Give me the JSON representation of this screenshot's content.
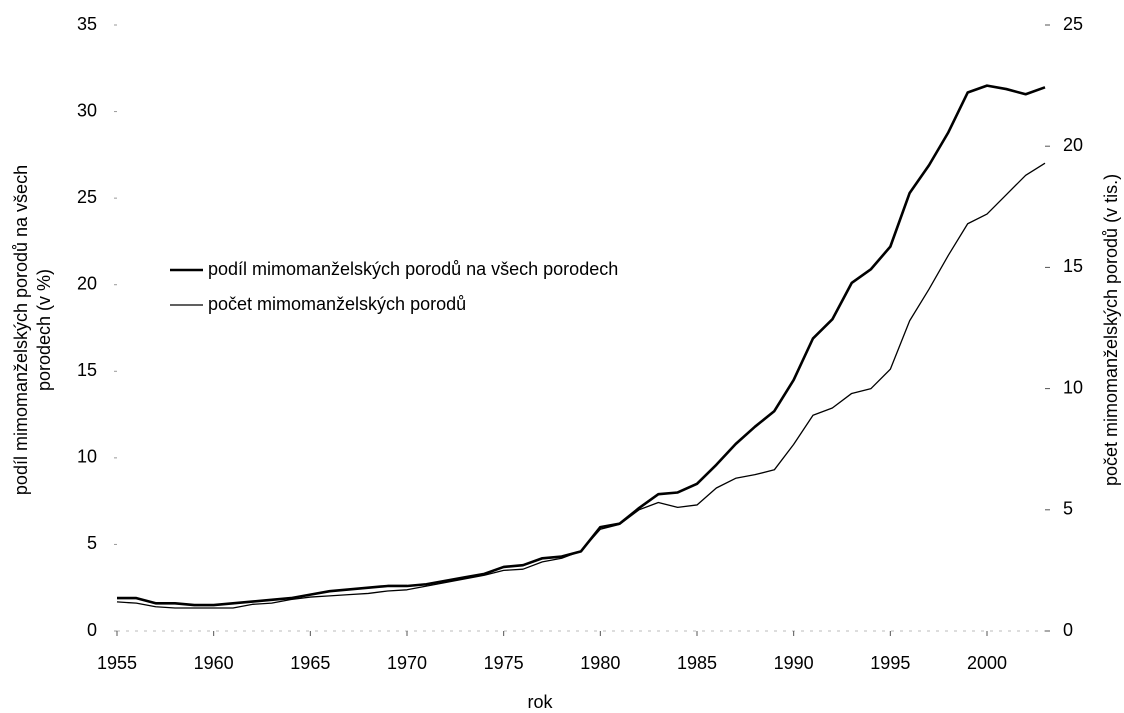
{
  "chart_data": {
    "type": "line",
    "xlabel": "rok",
    "ylabel": [
      "podíl mimomanželských porodů na všech",
      "porodech (v %)"
    ],
    "y2label": "počet mimomanželských porodů (v tis.)",
    "x": [
      1955,
      1956,
      1957,
      1958,
      1959,
      1960,
      1961,
      1962,
      1963,
      1964,
      1965,
      1966,
      1967,
      1968,
      1969,
      1970,
      1971,
      1972,
      1973,
      1974,
      1975,
      1976,
      1977,
      1978,
      1979,
      1980,
      1981,
      1982,
      1983,
      1984,
      1985,
      1986,
      1987,
      1988,
      1989,
      1990,
      1991,
      1992,
      1993,
      1994,
      1995,
      1996,
      1997,
      1998,
      1999,
      2000,
      2001,
      2002,
      2003
    ],
    "xlim": [
      1955,
      2003
    ],
    "xticks": [
      1955,
      1960,
      1965,
      1970,
      1975,
      1980,
      1985,
      1990,
      1995,
      2000
    ],
    "ylim": [
      0,
      35
    ],
    "yticks": [
      0,
      5,
      10,
      15,
      20,
      25,
      30,
      35
    ],
    "y2lim": [
      0,
      25
    ],
    "y2ticks": [
      0,
      5,
      10,
      15,
      20,
      25
    ],
    "legend": "left",
    "series": [
      {
        "name": "podíl mimomanželských porodů na všech porodech",
        "color": "#000000",
        "width": 2.6,
        "values": [
          1.9,
          1.9,
          1.6,
          1.6,
          1.5,
          1.5,
          1.6,
          1.7,
          1.8,
          1.9,
          2.1,
          2.3,
          2.4,
          2.5,
          2.6,
          2.6,
          2.7,
          2.9,
          3.1,
          3.3,
          3.7,
          3.8,
          4.2,
          4.3,
          4.6,
          6.0,
          6.2,
          7.1,
          7.9,
          8.0,
          8.5,
          9.6,
          10.8,
          11.8,
          12.7,
          14.5,
          16.9,
          18.0,
          20.1,
          20.9,
          22.2,
          25.3,
          26.9,
          28.8,
          31.1,
          31.5,
          31.3,
          31.0,
          31.4
        ]
      },
      {
        "name": "počet mimomanželských porodů",
        "color": "#000000",
        "width": 1.3,
        "axis": "y2",
        "values": [
          1.2,
          1.15,
          1.0,
          0.95,
          0.95,
          0.95,
          0.95,
          1.1,
          1.15,
          1.3,
          1.4,
          1.45,
          1.5,
          1.55,
          1.65,
          1.7,
          1.85,
          2.0,
          2.15,
          2.3,
          2.5,
          2.55,
          2.85,
          3.0,
          3.3,
          4.2,
          4.4,
          5.0,
          5.3,
          5.1,
          5.2,
          5.9,
          6.3,
          6.45,
          6.65,
          7.7,
          8.9,
          9.2,
          9.8,
          10.0,
          10.8,
          12.8,
          14.1,
          15.5,
          16.8,
          17.2,
          18.0,
          18.8,
          19.3
        ]
      }
    ]
  }
}
